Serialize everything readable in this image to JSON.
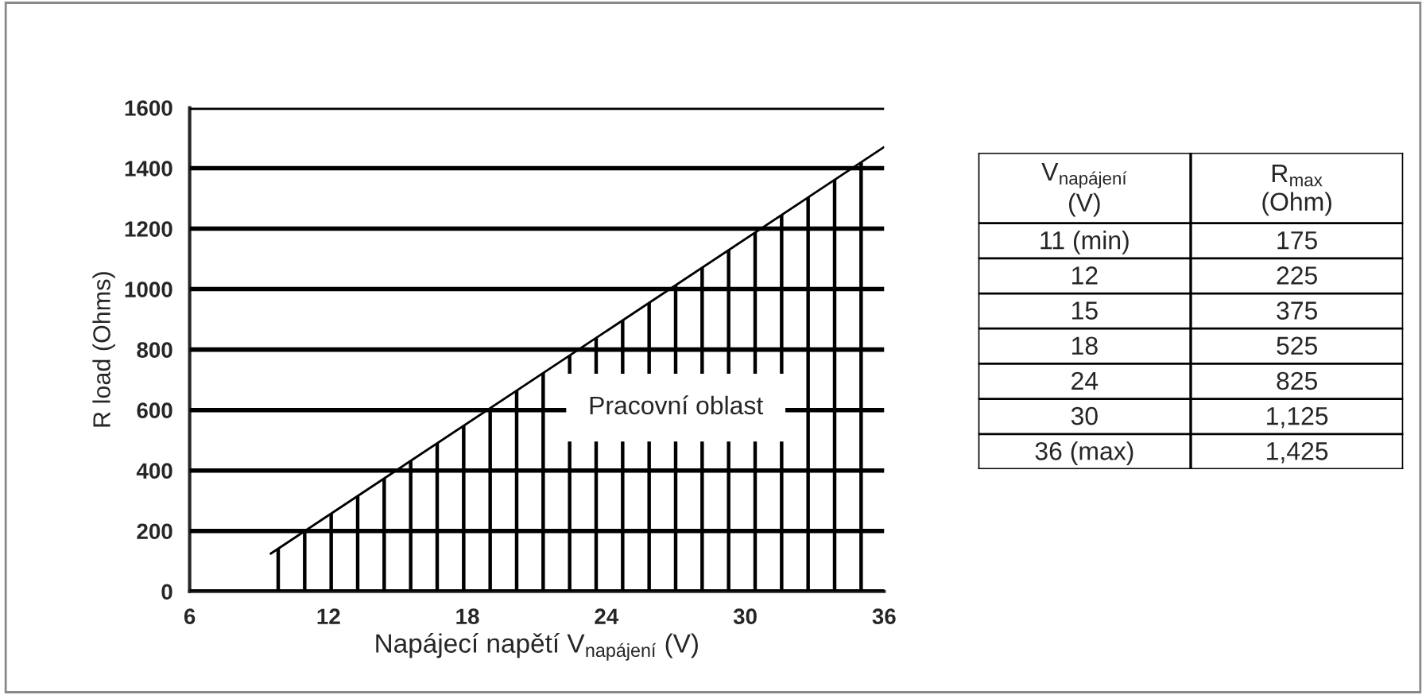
{
  "chart_data": [
    {
      "type": "area",
      "xlabel": "Napájecí napětí V$_{napájení}$ (V)",
      "ylabel": "R load (Ohms)",
      "series": [
        {
          "type": "area",
          "color": "#000000",
          "x": [
            9.5,
            36
          ],
          "values": [
            125,
            1470
          ]
        }
      ],
      "xlim": [
        6,
        36
      ],
      "xticks": [
        6,
        12,
        18,
        24,
        30,
        36
      ],
      "ylim": [
        0,
        1600
      ],
      "yticks": [
        0,
        200,
        400,
        600,
        800,
        1000,
        1200,
        1400,
        1600
      ],
      "grid": "y",
      "annotations": [
        "Pracovní oblast"
      ]
    },
    {
      "type": "other",
      "annotations": [
        "V$_{napájení}$\n(V)",
        "R$_{max}$\n(Ohm)",
        "11 (min)",
        "175",
        "12",
        "225",
        "15",
        "375",
        "18",
        "525",
        "24",
        "825",
        "30",
        "1,125",
        "36 (max)",
        "1,425"
      ]
    }
  ]
}
